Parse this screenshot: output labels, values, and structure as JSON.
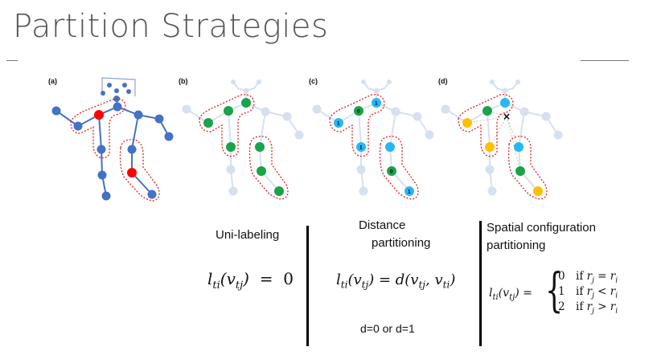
{
  "title": "Partition Strategies",
  "panels": [
    {
      "label": "(a)"
    },
    {
      "label": "(b)"
    },
    {
      "label": "(c)",
      "node_numbers": [
        "0",
        "1",
        "1",
        "1",
        "0",
        "1"
      ]
    },
    {
      "label": "(d)",
      "cross_marker": "×"
    }
  ],
  "colors": {
    "blue_node": "#4472c4",
    "red_node": "#ff0000",
    "green_node": "#1aa34a",
    "cyan_node": "#29b6f6",
    "orange_node": "#ffc000",
    "faded_node": "#d6e0ef",
    "partition_outline": "#e02020"
  },
  "sections": [
    {
      "heading": "Uni-labeling",
      "formula_lhs": "l",
      "formula": "l_{ti}(v_{tj}) = 0"
    },
    {
      "heading_lines": [
        "Distance",
        "partitioning"
      ],
      "note": "d=0 or d=1",
      "formula": "l_{ti}(v_{tj}) = d(v_{tj}, v_{ti})"
    },
    {
      "heading_lines": [
        "Spatial configuration",
        "partitioning"
      ],
      "formula_lhs": "l_{ti}(v_{tj}) =",
      "cases": [
        {
          "value": "0",
          "condition": "if r_j = r_i"
        },
        {
          "value": "1",
          "condition": "if r_j < r_i"
        },
        {
          "value": "2",
          "condition": "if r_j > r_i"
        }
      ]
    }
  ]
}
